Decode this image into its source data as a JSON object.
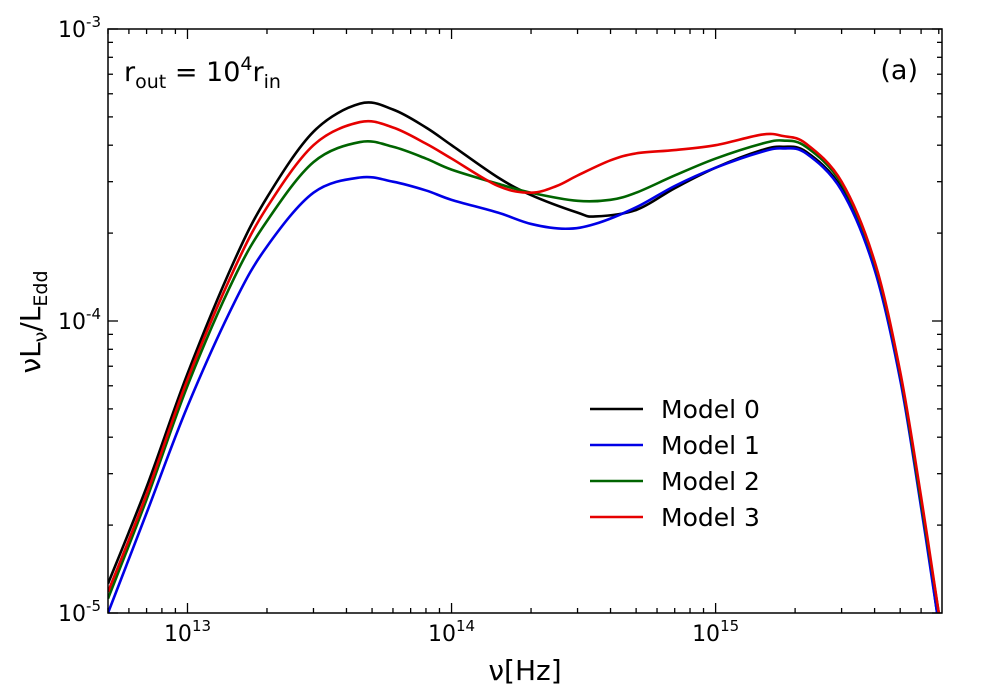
{
  "chart_data": {
    "type": "line",
    "xscale": "log",
    "yscale": "log",
    "xlim": [
      5000000000000.0,
      7200000000000000.0
    ],
    "ylim": [
      1e-05,
      0.001
    ],
    "grid": false,
    "legend_position": "lower-right",
    "xlabel": {
      "base": "ν[Hz]"
    },
    "ylabel": {
      "part1": "νL",
      "sub1": "ν",
      "part2": "/L",
      "sub2": "Edd"
    },
    "annotation": {
      "r": "r",
      "out": "out",
      "eq": " = 10",
      "exp": "4",
      "r2": "r",
      "in": "in"
    },
    "panel_label": "(a)",
    "x_tick_labels": [
      {
        "value": 10000000000000.0,
        "base": "10",
        "exp": "13"
      },
      {
        "value": 100000000000000.0,
        "base": "10",
        "exp": "14"
      },
      {
        "value": 1000000000000000.0,
        "base": "10",
        "exp": "15"
      }
    ],
    "y_tick_labels": [
      {
        "value": 0.001,
        "base": "10",
        "exp": "-3"
      },
      {
        "value": 0.0001,
        "base": "10",
        "exp": "-4"
      },
      {
        "value": 1e-05,
        "base": "10",
        "exp": "-5"
      }
    ],
    "series": [
      {
        "name": "Model 0",
        "color": "#000000",
        "points": [
          [
            5000000000000.0,
            1.26e-05
          ],
          [
            7000000000000.0,
            2.7e-05
          ],
          [
            10000000000000.0,
            6.6e-05
          ],
          [
            15000000000000.0,
            0.00016
          ],
          [
            20000000000000.0,
            0.000265
          ],
          [
            30000000000000.0,
            0.000445
          ],
          [
            45000000000000.0,
            0.000555
          ],
          [
            60000000000000.0,
            0.00053
          ],
          [
            80000000000000.0,
            0.00046
          ],
          [
            100000000000000.0,
            0.0004
          ],
          [
            150000000000000.0,
            0.00031
          ],
          [
            200000000000000.0,
            0.00027
          ],
          [
            300000000000000.0,
            0.000235
          ],
          [
            350000000000000.0,
            0.000228
          ],
          [
            500000000000000.0,
            0.00024
          ],
          [
            700000000000000.0,
            0.000285
          ],
          [
            1000000000000000.0,
            0.000335
          ],
          [
            1500000000000000.0,
            0.000385
          ],
          [
            1800000000000000.0,
            0.000395
          ],
          [
            2200000000000000.0,
            0.00038
          ],
          [
            3000000000000000.0,
            0.000285
          ],
          [
            4000000000000000.0,
            0.000155
          ],
          [
            5000000000000000.0,
            6.5e-05
          ],
          [
            6000000000000000.0,
            2.4e-05
          ],
          [
            6900000000000000.0,
            1e-05
          ]
        ]
      },
      {
        "name": "Model 1",
        "color": "#0000e6",
        "points": [
          [
            5000000000000.0,
            1e-05
          ],
          [
            7000000000000.0,
            2.2e-05
          ],
          [
            10000000000000.0,
            5.1e-05
          ],
          [
            15000000000000.0,
            0.000115
          ],
          [
            20000000000000.0,
            0.00018
          ],
          [
            30000000000000.0,
            0.000275
          ],
          [
            45000000000000.0,
            0.00031
          ],
          [
            60000000000000.0,
            0.0003
          ],
          [
            80000000000000.0,
            0.00028
          ],
          [
            100000000000000.0,
            0.00026
          ],
          [
            150000000000000.0,
            0.000235
          ],
          [
            200000000000000.0,
            0.000215
          ],
          [
            270000000000000.0,
            0.000207
          ],
          [
            350000000000000.0,
            0.000215
          ],
          [
            500000000000000.0,
            0.000245
          ],
          [
            700000000000000.0,
            0.00029
          ],
          [
            1000000000000000.0,
            0.000335
          ],
          [
            1500000000000000.0,
            0.00038
          ],
          [
            1800000000000000.0,
            0.00039
          ],
          [
            2200000000000000.0,
            0.000375
          ],
          [
            3000000000000000.0,
            0.00028
          ],
          [
            4000000000000000.0,
            0.00015
          ],
          [
            5000000000000000.0,
            6.3e-05
          ],
          [
            6000000000000000.0,
            2.3e-05
          ],
          [
            6900000000000000.0,
            1e-05
          ]
        ]
      },
      {
        "name": "Model 2",
        "color": "#006400",
        "points": [
          [
            5000000000000.0,
            1.12e-05
          ],
          [
            7000000000000.0,
            2.45e-05
          ],
          [
            10000000000000.0,
            6e-05
          ],
          [
            15000000000000.0,
            0.00014
          ],
          [
            20000000000000.0,
            0.00022
          ],
          [
            30000000000000.0,
            0.00035
          ],
          [
            45000000000000.0,
            0.00041
          ],
          [
            60000000000000.0,
            0.000395
          ],
          [
            80000000000000.0,
            0.00036
          ],
          [
            100000000000000.0,
            0.00033
          ],
          [
            150000000000000.0,
            0.000295
          ],
          [
            200000000000000.0,
            0.000275
          ],
          [
            300000000000000.0,
            0.000258
          ],
          [
            400000000000000.0,
            0.00026
          ],
          [
            500000000000000.0,
            0.000275
          ],
          [
            700000000000000.0,
            0.000315
          ],
          [
            1000000000000000.0,
            0.00036
          ],
          [
            1500000000000000.0,
            0.000405
          ],
          [
            1800000000000000.0,
            0.000415
          ],
          [
            2200000000000000.0,
            0.000395
          ],
          [
            3000000000000000.0,
            0.000295
          ],
          [
            4000000000000000.0,
            0.000158
          ],
          [
            5000000000000000.0,
            6.6e-05
          ],
          [
            6000000000000000.0,
            2.4e-05
          ],
          [
            7000000000000000.0,
            1e-05
          ]
        ]
      },
      {
        "name": "Model 3",
        "color": "#e60000",
        "points": [
          [
            5000000000000.0,
            1.18e-05
          ],
          [
            7000000000000.0,
            2.55e-05
          ],
          [
            10000000000000.0,
            6.3e-05
          ],
          [
            15000000000000.0,
            0.00015
          ],
          [
            20000000000000.0,
            0.000245
          ],
          [
            30000000000000.0,
            0.0004
          ],
          [
            45000000000000.0,
            0.00048
          ],
          [
            60000000000000.0,
            0.00046
          ],
          [
            80000000000000.0,
            0.000405
          ],
          [
            100000000000000.0,
            0.00036
          ],
          [
            150000000000000.0,
            0.00029
          ],
          [
            200000000000000.0,
            0.000275
          ],
          [
            250000000000000.0,
            0.00029
          ],
          [
            300000000000000.0,
            0.000315
          ],
          [
            400000000000000.0,
            0.000355
          ],
          [
            500000000000000.0,
            0.000375
          ],
          [
            700000000000000.0,
            0.000385
          ],
          [
            1000000000000000.0,
            0.0004
          ],
          [
            1500000000000000.0,
            0.000435
          ],
          [
            1800000000000000.0,
            0.00043
          ],
          [
            2200000000000000.0,
            0.000405
          ],
          [
            3000000000000000.0,
            0.0003
          ],
          [
            4000000000000000.0,
            0.00016
          ],
          [
            5000000000000000.0,
            6.7e-05
          ],
          [
            6000000000000000.0,
            2.5e-05
          ],
          [
            7000000000000000.0,
            1e-05
          ]
        ]
      }
    ]
  }
}
